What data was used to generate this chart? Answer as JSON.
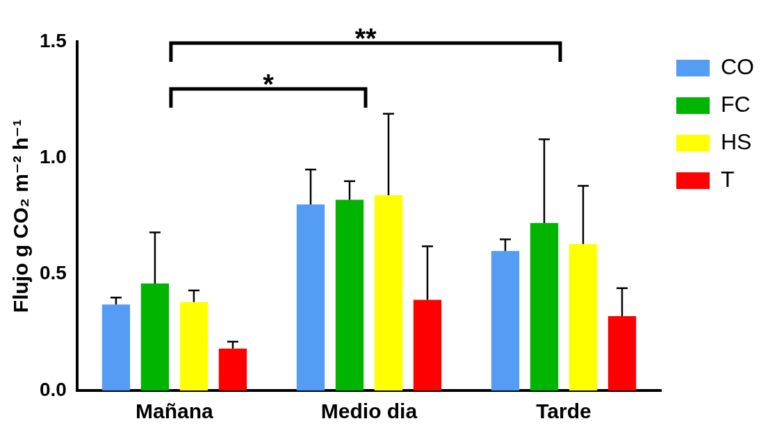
{
  "chart_data": {
    "type": "bar",
    "ylabel": "Flujo g CO₂ m⁻² h⁻¹",
    "categories": [
      "Mañana",
      "Medio dia",
      "Tarde"
    ],
    "series": [
      {
        "name": "CO",
        "color": "#559cf5",
        "values": [
          0.37,
          0.8,
          0.6
        ],
        "errors": [
          [
            0.37,
            0.4
          ],
          [
            0.8,
            0.95
          ],
          [
            0.6,
            0.65
          ]
        ]
      },
      {
        "name": "FC",
        "color": "#00b400",
        "values": [
          0.46,
          0.82,
          0.72
        ],
        "errors": [
          [
            0.46,
            0.68
          ],
          [
            0.82,
            0.9
          ],
          [
            0.72,
            1.08
          ]
        ]
      },
      {
        "name": "HS",
        "color": "#ffff00",
        "values": [
          0.38,
          0.84,
          0.63
        ],
        "errors": [
          [
            0.38,
            0.43
          ],
          [
            0.84,
            1.19
          ],
          [
            0.63,
            0.88
          ]
        ]
      },
      {
        "name": "T",
        "color": "#ff0000",
        "values": [
          0.18,
          0.39,
          0.32
        ],
        "errors": [
          [
            0.18,
            0.21
          ],
          [
            0.39,
            0.62
          ],
          [
            0.32,
            0.44
          ]
        ]
      }
    ],
    "ylim": [
      0,
      1.5
    ],
    "yticks": [
      {
        "value": 0,
        "label": "0.0"
      },
      {
        "value": 0.5,
        "label": "0.5"
      },
      {
        "value": 1,
        "label": "1.0"
      },
      {
        "value": 1.5,
        "label": "1.5"
      }
    ],
    "legend": "right",
    "annotations": [
      "*",
      "**"
    ]
  }
}
